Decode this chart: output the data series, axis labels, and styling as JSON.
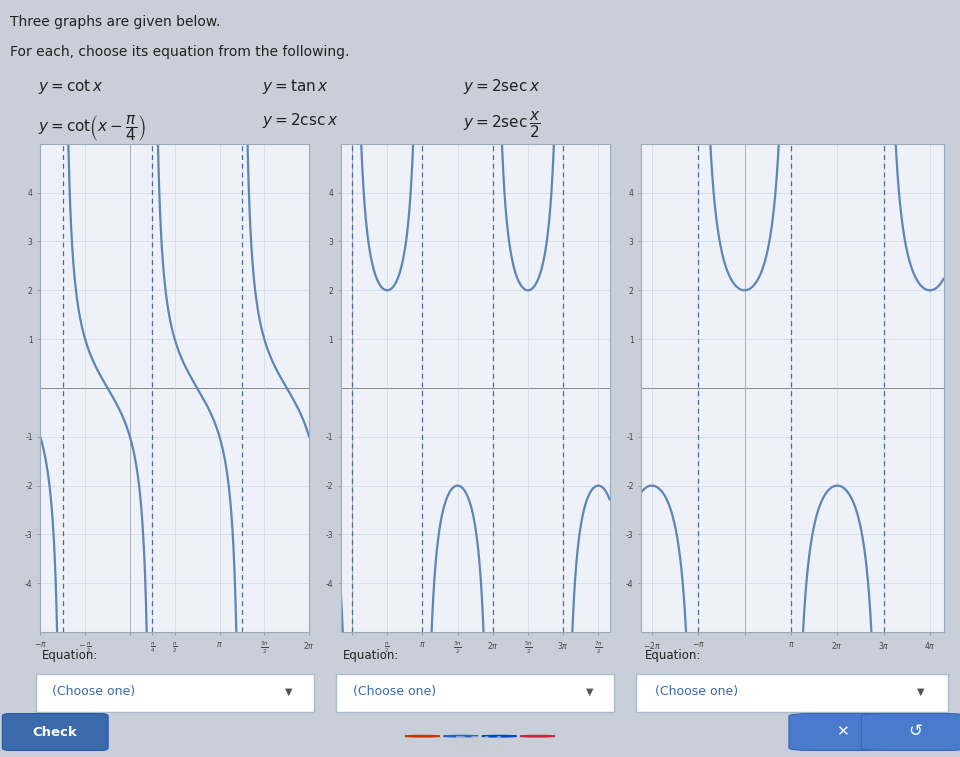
{
  "title_line1": "Three graphs are given below.",
  "title_line2": "For each, choose its equation from the following.",
  "curve_color": "#5b85bb",
  "asymptote_color": "#4a6a99",
  "grid_color": "#c5d0e0",
  "axis_color": "#888888",
  "page_bg": "#c8cfd8",
  "panel_bg": "#e8eef6",
  "graph_bg": "#eef2f8",
  "border_color": "#9aaabb",
  "dropdown_bg": "#f0f4fa",
  "dropdown_text": "#3a6aaa",
  "check_btn_color": "#3a6aaa",
  "action_btn_color": "#4a7acc",
  "text_color": "#222222",
  "pi": 3.14159265358979,
  "graph1_xlim": [
    -3.14159,
    6.28318
  ],
  "graph2_xlim": [
    -0.5,
    11.5
  ],
  "graph3_xlim": [
    -7.0,
    13.5
  ],
  "ylim": [
    -5.0,
    5.0
  ],
  "yticks": [
    -4,
    -3,
    -2,
    -1,
    1,
    2,
    3,
    4
  ]
}
